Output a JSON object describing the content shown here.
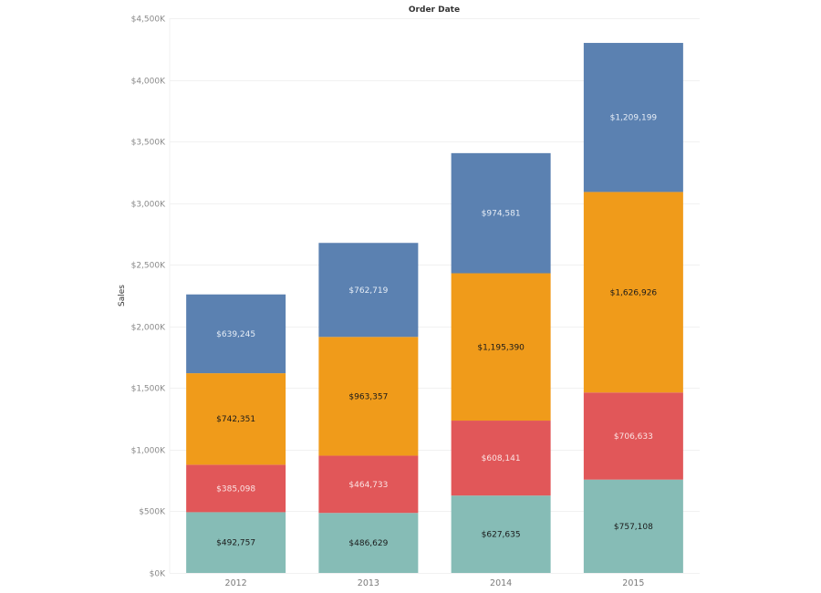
{
  "chart_data": {
    "type": "bar",
    "stacked": true,
    "title": "Order Date",
    "xlabel": "",
    "ylabel": "Sales",
    "categories": [
      "2012",
      "2013",
      "2014",
      "2015"
    ],
    "ylim": [
      0,
      4500000
    ],
    "yticks": [
      0,
      500000,
      1000000,
      1500000,
      2000000,
      2500000,
      3000000,
      3500000,
      4000000,
      4500000
    ],
    "ytick_labels": [
      "$0K",
      "$500K",
      "$1,000K",
      "$1,500K",
      "$2,000K",
      "$2,500K",
      "$3,000K",
      "$3,500K",
      "$4,000K",
      "$4,500K"
    ],
    "grid": true,
    "legend": "none",
    "series": [
      {
        "name": "teal",
        "color": "#86bcb6",
        "label_color": "#1a1a1a",
        "values": [
          492757,
          486629,
          627635,
          757108
        ],
        "labels": [
          "$492,757",
          "$486,629",
          "$627,635",
          "$757,108"
        ]
      },
      {
        "name": "red",
        "color": "#e15759",
        "label_color": "#fbe3e3",
        "values": [
          385098,
          464733,
          608141,
          706633
        ],
        "labels": [
          "$385,098",
          "$464,733",
          "$608,141",
          "$706,633"
        ]
      },
      {
        "name": "orange",
        "color": "#f09b1a",
        "label_color": "#1a1a1a",
        "values": [
          742351,
          963357,
          1195390,
          1626926
        ],
        "labels": [
          "$742,351",
          "$963,357",
          "$1,195,390",
          "$1,626,926"
        ]
      },
      {
        "name": "blue",
        "color": "#5b81b1",
        "label_color": "#e6edf6",
        "values": [
          639245,
          762719,
          974581,
          1209199
        ],
        "labels": [
          "$639,245",
          "$762,719",
          "$974,581",
          "$1,209,199"
        ]
      }
    ]
  }
}
